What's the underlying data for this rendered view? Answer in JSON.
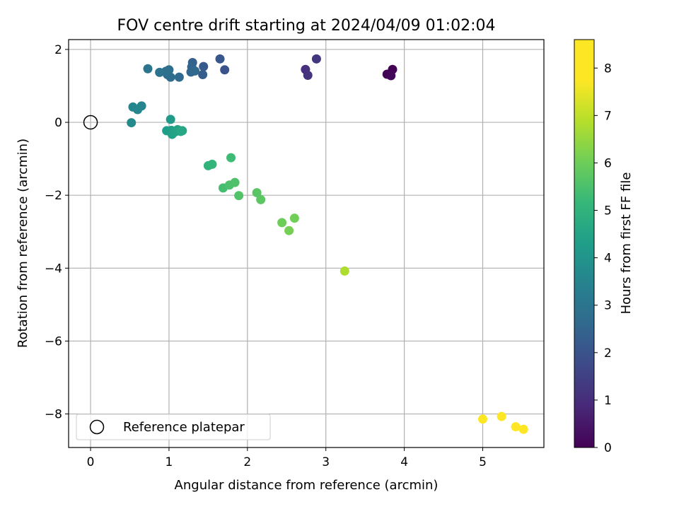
{
  "chart_data": {
    "type": "scatter",
    "title": "FOV centre drift starting at 2024/04/09 01:02:04",
    "xlabel": "Angular distance from reference (arcmin)",
    "ylabel": "Rotation from reference (arcmin)",
    "xlim": [
      -0.28,
      5.78
    ],
    "ylim": [
      -8.92,
      2.27
    ],
    "xticks": [
      0,
      1,
      2,
      3,
      4,
      5
    ],
    "yticks": [
      2,
      0,
      -2,
      -4,
      -6,
      -8
    ],
    "grid": true,
    "legend": {
      "placement": "lower-left",
      "entries": [
        "Reference platepar"
      ]
    },
    "reference_point": {
      "name": "Reference platepar",
      "x": 0,
      "y": 0
    },
    "colorbar": {
      "label": "Hours from first FF file",
      "range": [
        0,
        8.6
      ],
      "ticks": [
        0,
        1,
        2,
        3,
        4,
        5,
        6,
        7,
        8
      ],
      "colormap": "viridis"
    },
    "points": [
      {
        "x": 3.85,
        "y": 1.45,
        "t": 0.0
      },
      {
        "x": 3.78,
        "y": 1.32,
        "t": 0.05
      },
      {
        "x": 3.83,
        "y": 1.28,
        "t": 0.1
      },
      {
        "x": 2.74,
        "y": 1.45,
        "t": 1.1
      },
      {
        "x": 2.77,
        "y": 1.29,
        "t": 1.15
      },
      {
        "x": 2.88,
        "y": 1.74,
        "t": 1.2
      },
      {
        "x": 1.71,
        "y": 1.44,
        "t": 2.0
      },
      {
        "x": 1.65,
        "y": 1.74,
        "t": 2.1
      },
      {
        "x": 1.44,
        "y": 1.53,
        "t": 2.2
      },
      {
        "x": 1.43,
        "y": 1.31,
        "t": 2.3
      },
      {
        "x": 1.3,
        "y": 1.64,
        "t": 2.4
      },
      {
        "x": 1.29,
        "y": 1.52,
        "t": 2.5
      },
      {
        "x": 1.28,
        "y": 1.38,
        "t": 2.55
      },
      {
        "x": 1.33,
        "y": 1.41,
        "t": 2.6
      },
      {
        "x": 1.13,
        "y": 1.24,
        "t": 2.65
      },
      {
        "x": 1.02,
        "y": 1.24,
        "t": 2.7
      },
      {
        "x": 0.98,
        "y": 1.31,
        "t": 2.75
      },
      {
        "x": 1.0,
        "y": 1.44,
        "t": 2.8
      },
      {
        "x": 0.96,
        "y": 1.4,
        "t": 2.85
      },
      {
        "x": 0.88,
        "y": 1.37,
        "t": 2.9
      },
      {
        "x": 0.73,
        "y": 1.47,
        "t": 3.0
      },
      {
        "x": 0.65,
        "y": 0.45,
        "t": 3.5
      },
      {
        "x": 0.54,
        "y": 0.42,
        "t": 3.55
      },
      {
        "x": 0.6,
        "y": 0.35,
        "t": 3.6
      },
      {
        "x": 0.52,
        "y": -0.01,
        "t": 3.7
      },
      {
        "x": 1.02,
        "y": 0.08,
        "t": 4.2
      },
      {
        "x": 0.97,
        "y": -0.23,
        "t": 4.3
      },
      {
        "x": 1.03,
        "y": -0.22,
        "t": 4.35
      },
      {
        "x": 1.04,
        "y": -0.33,
        "t": 4.4
      },
      {
        "x": 1.08,
        "y": -0.26,
        "t": 4.45
      },
      {
        "x": 1.11,
        "y": -0.2,
        "t": 4.5
      },
      {
        "x": 1.17,
        "y": -0.23,
        "t": 4.55
      },
      {
        "x": 1.15,
        "y": -0.25,
        "t": 4.6
      },
      {
        "x": 1.5,
        "y": -1.19,
        "t": 5.0
      },
      {
        "x": 1.55,
        "y": -1.15,
        "t": 5.1
      },
      {
        "x": 1.79,
        "y": -0.97,
        "t": 5.3
      },
      {
        "x": 1.69,
        "y": -1.8,
        "t": 5.4
      },
      {
        "x": 1.77,
        "y": -1.72,
        "t": 5.5
      },
      {
        "x": 1.84,
        "y": -1.65,
        "t": 5.55
      },
      {
        "x": 1.89,
        "y": -2.01,
        "t": 5.6
      },
      {
        "x": 2.12,
        "y": -1.93,
        "t": 5.7
      },
      {
        "x": 2.17,
        "y": -2.12,
        "t": 5.75
      },
      {
        "x": 2.44,
        "y": -2.75,
        "t": 6.0
      },
      {
        "x": 2.6,
        "y": -2.63,
        "t": 6.05
      },
      {
        "x": 2.53,
        "y": -2.97,
        "t": 6.1
      },
      {
        "x": 3.24,
        "y": -4.08,
        "t": 6.8
      },
      {
        "x": 5.0,
        "y": -8.14,
        "t": 8.3
      },
      {
        "x": 5.24,
        "y": -8.07,
        "t": 8.4
      },
      {
        "x": 5.42,
        "y": -8.35,
        "t": 8.5
      },
      {
        "x": 5.52,
        "y": -8.42,
        "t": 8.6
      }
    ]
  }
}
